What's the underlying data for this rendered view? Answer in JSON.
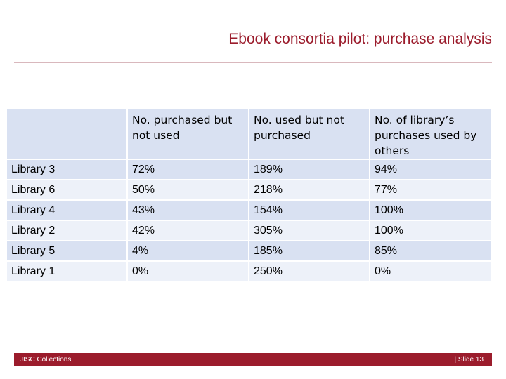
{
  "slide": {
    "title": "Ebook consortia pilot: purchase analysis"
  },
  "table": {
    "headers": [
      "",
      "No. purchased but not used",
      "No. used but not purchased",
      "No. of library’s purchases used by others"
    ],
    "rows": [
      {
        "library": "Library 3",
        "purchased_not_used": "72%",
        "used_not_purchased": "189%",
        "purchases_used_by_others": "94%"
      },
      {
        "library": "Library 6",
        "purchased_not_used": "50%",
        "used_not_purchased": "218%",
        "purchases_used_by_others": "77%"
      },
      {
        "library": "Library 4",
        "purchased_not_used": "43%",
        "used_not_purchased": "154%",
        "purchases_used_by_others": "100%"
      },
      {
        "library": "Library 2",
        "purchased_not_used": "42%",
        "used_not_purchased": "305%",
        "purchases_used_by_others": "100%"
      },
      {
        "library": "Library 5",
        "purchased_not_used": "4%",
        "used_not_purchased": "185%",
        "purchases_used_by_others": "85%"
      },
      {
        "library": "Library 1",
        "purchased_not_used": "0%",
        "used_not_purchased": "250%",
        "purchases_used_by_others": "0%"
      }
    ]
  },
  "footer": {
    "left": "JISC Collections",
    "right": "| Slide 13"
  },
  "colors": {
    "accent": "#9b1c2c",
    "table_header_bg": "#d9e1f2",
    "table_row_alt_bg": "#edf1f9"
  }
}
